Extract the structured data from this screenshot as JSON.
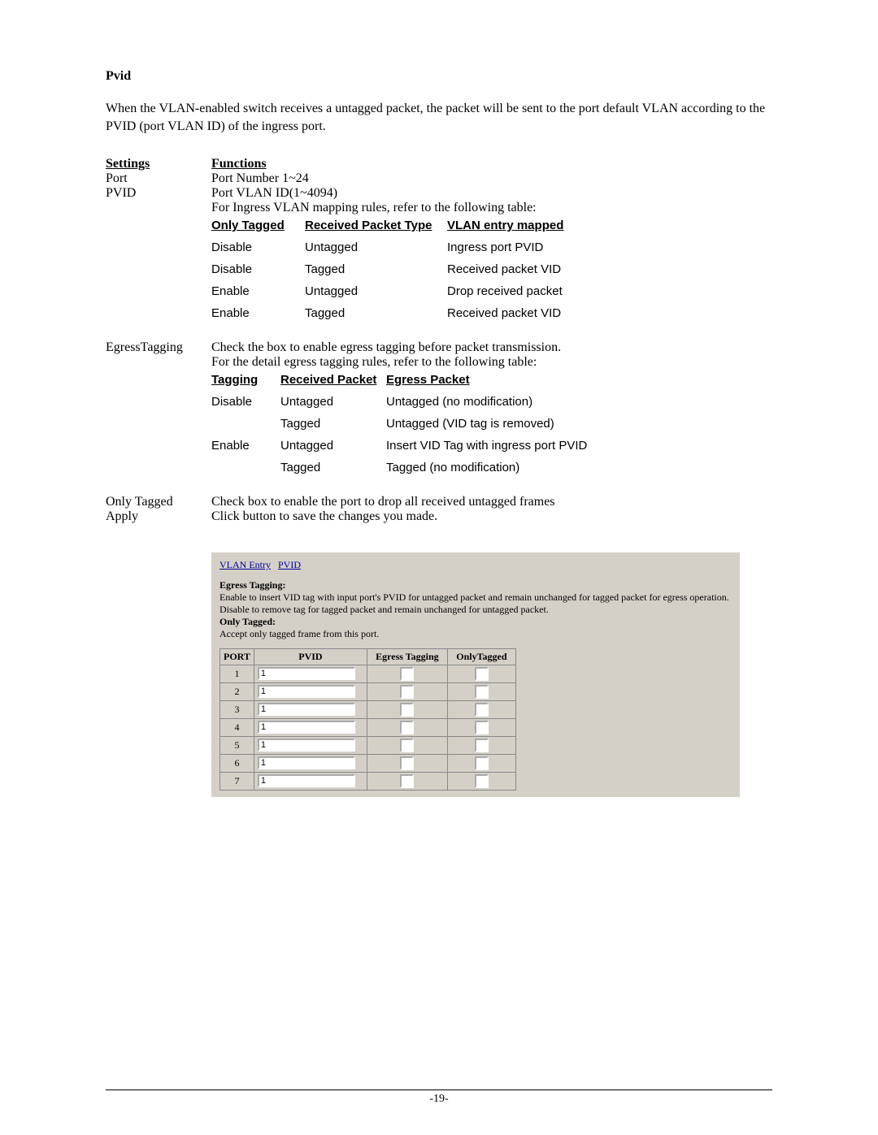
{
  "title": "Pvid",
  "intro": "When the VLAN-enabled switch receives a untagged packet, the packet will be sent to the port default VLAN according to the PVID (port VLAN ID) of the ingress port.",
  "headers": {
    "settings": "Settings",
    "functions": "Functions"
  },
  "rows": {
    "port": {
      "label": "Port",
      "value": "Port Number 1~24"
    },
    "pvid": {
      "label": "PVID",
      "line1": "Port VLAN ID(1~4094)",
      "line2": "For Ingress VLAN mapping rules, refer to the following table:"
    },
    "egress": {
      "label": "EgressTagging",
      "line1": "Check the box to enable egress tagging before packet transmission.",
      "line2": "For the detail egress tagging rules, refer to the following table:"
    },
    "only_tagged": {
      "label": "Only Tagged",
      "value": "Check box to enable the port to drop all received untagged frames"
    },
    "apply": {
      "label": "Apply",
      "value": "Click button to save the changes you made."
    }
  },
  "ingress_table": {
    "h1": "Only Tagged",
    "h2": "Received Packet Type",
    "h3": "VLAN entry mapped",
    "r1": [
      "Disable",
      "Untagged",
      "Ingress port PVID"
    ],
    "r2": [
      "Disable",
      "Tagged",
      "Received packet VID"
    ],
    "r3": [
      "Enable",
      "Untagged",
      "Drop received packet"
    ],
    "r4": [
      "Enable",
      "Tagged",
      "Received packet VID"
    ]
  },
  "egress_table": {
    "h1": "Tagging",
    "h2": "Received Packet",
    "h3": "Egress Packet",
    "r1": [
      "Disable",
      "Untagged",
      "Untagged (no modification)"
    ],
    "r2": [
      "",
      "Tagged",
      "Untagged (VID tag is removed)"
    ],
    "r3": [
      "Enable",
      "Untagged",
      "Insert VID Tag with ingress port PVID"
    ],
    "r4": [
      "",
      "Tagged",
      "Tagged (no modification)"
    ]
  },
  "screenshot": {
    "nav": {
      "vlan_entry": "VLAN Entry",
      "pvid": "PVID"
    },
    "egress_label": "Egress Tagging:",
    "egress_text1": "Enable to insert VID tag with input port's PVID for untagged packet and remain unchanged for tagged packet for egress operation.",
    "egress_text2": "Disable to remove tag for tagged packet and remain unchanged for untagged packet.",
    "only_tagged_label": "Only Tagged:",
    "only_tagged_text": "Accept only tagged frame from this port.",
    "table_headers": {
      "port": "PORT",
      "pvid": "PVID",
      "egress": "Egress Tagging",
      "only": "OnlyTagged"
    },
    "port_rows": [
      {
        "port": "1",
        "pvid": "1"
      },
      {
        "port": "2",
        "pvid": "1"
      },
      {
        "port": "3",
        "pvid": "1"
      },
      {
        "port": "4",
        "pvid": "1"
      },
      {
        "port": "5",
        "pvid": "1"
      },
      {
        "port": "6",
        "pvid": "1"
      },
      {
        "port": "7",
        "pvid": "1"
      }
    ]
  },
  "page_number": "-19-"
}
